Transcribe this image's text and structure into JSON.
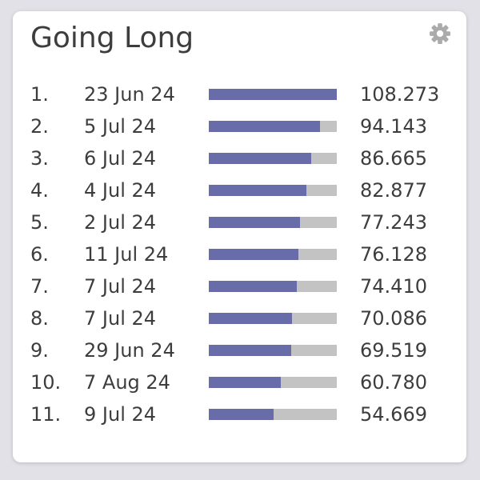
{
  "header": {
    "title": "Going Long",
    "settings_icon": "gear"
  },
  "colors": {
    "page_background": "#e2e1e8",
    "card_background": "#ffffff",
    "text": "#3d3d3d",
    "bar_fill": "#686da9",
    "bar_track": "#c3c3c3",
    "gear_icon": "#ababab"
  },
  "chart_data": {
    "type": "bar",
    "orientation": "horizontal",
    "title": "Going Long",
    "value_scale_max": 108.273,
    "legend": "none",
    "categories": [
      "23 Jun 24",
      "5 Jul 24",
      "6 Jul 24",
      "4 Jul 24",
      "2 Jul 24",
      "11 Jul 24",
      "7 Jul 24",
      "7 Jul 24",
      "29 Jun 24",
      "7 Aug 24",
      "9 Jul 24"
    ],
    "values": [
      108.273,
      94.143,
      86.665,
      82.877,
      77.243,
      76.128,
      74.41,
      70.086,
      69.519,
      60.78,
      54.669
    ],
    "rows": [
      {
        "rank": "1.",
        "date": "23 Jun 24",
        "value": "108.273"
      },
      {
        "rank": "2.",
        "date": "5 Jul 24",
        "value": "94.143"
      },
      {
        "rank": "3.",
        "date": "6 Jul 24",
        "value": "86.665"
      },
      {
        "rank": "4.",
        "date": "4 Jul 24",
        "value": "82.877"
      },
      {
        "rank": "5.",
        "date": "2 Jul 24",
        "value": "77.243"
      },
      {
        "rank": "6.",
        "date": "11 Jul 24",
        "value": "76.128"
      },
      {
        "rank": "7.",
        "date": "7 Jul 24",
        "value": "74.410"
      },
      {
        "rank": "8.",
        "date": "7 Jul 24",
        "value": "70.086"
      },
      {
        "rank": "9.",
        "date": "29 Jun 24",
        "value": "69.519"
      },
      {
        "rank": "10.",
        "date": "7 Aug 24",
        "value": "60.780"
      },
      {
        "rank": "11.",
        "date": "9 Jul 24",
        "value": "54.669"
      }
    ]
  }
}
